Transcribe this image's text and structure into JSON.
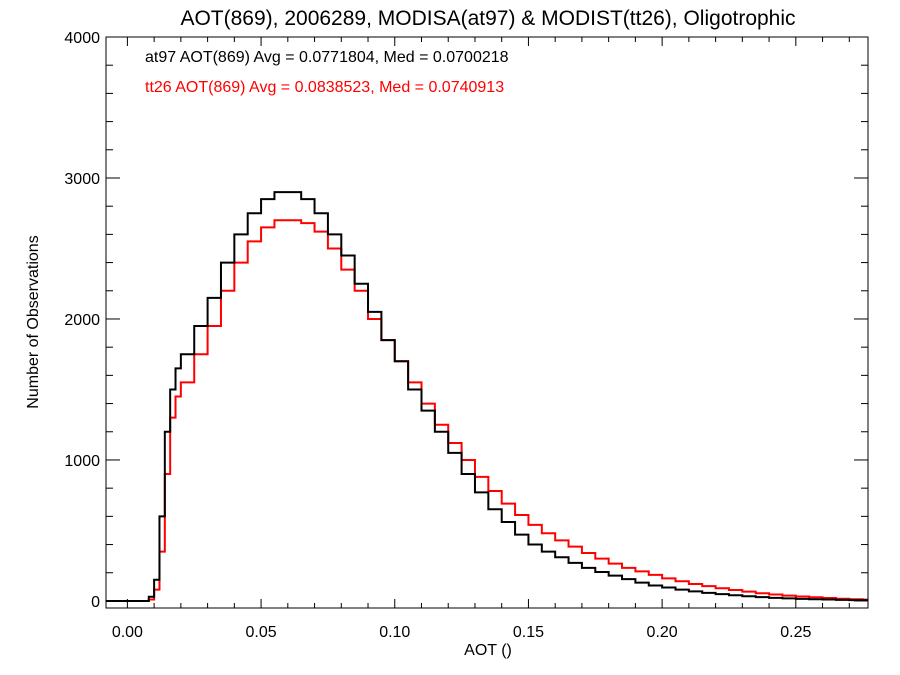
{
  "chart_data": {
    "type": "line",
    "title": "AOT(869), 2006289, MODISA(at97) & MODIST(tt26), Oligotrophic",
    "xlabel": "AOT ()",
    "ylabel": "Number of Observations",
    "xlim": [
      -0.008,
      0.277
    ],
    "ylim": [
      -50,
      4000
    ],
    "xticks": [
      0.0,
      0.05,
      0.1,
      0.15,
      0.2,
      0.25
    ],
    "xtick_labels": [
      "0.00",
      "0.05",
      "0.10",
      "0.15",
      "0.20",
      "0.25"
    ],
    "yticks": [
      0,
      1000,
      2000,
      3000,
      4000
    ],
    "ytick_labels": [
      "0",
      "1000",
      "2000",
      "3000",
      "4000"
    ],
    "grid": false,
    "annotations": [
      {
        "text": "at97 AOT(869) Avg = 0.0771804, Med = 0.0700218",
        "color": "#000000"
      },
      {
        "text": "tt26 AOT(869) Avg = 0.0838523, Med = 0.0740913",
        "color": "#ff0000"
      }
    ],
    "x": [
      0.005,
      0.008,
      0.01,
      0.012,
      0.014,
      0.016,
      0.018,
      0.02,
      0.025,
      0.03,
      0.035,
      0.04,
      0.045,
      0.05,
      0.055,
      0.06,
      0.065,
      0.07,
      0.075,
      0.08,
      0.085,
      0.09,
      0.095,
      0.1,
      0.105,
      0.11,
      0.115,
      0.12,
      0.125,
      0.13,
      0.135,
      0.14,
      0.145,
      0.15,
      0.155,
      0.16,
      0.165,
      0.17,
      0.175,
      0.18,
      0.185,
      0.19,
      0.195,
      0.2,
      0.205,
      0.21,
      0.215,
      0.22,
      0.225,
      0.23,
      0.235,
      0.24,
      0.245,
      0.25,
      0.255,
      0.26,
      0.265,
      0.27,
      0.275
    ],
    "series": [
      {
        "name": "at97",
        "color": "#000000",
        "values": [
          0,
          30,
          150,
          600,
          1200,
          1500,
          1650,
          1750,
          1950,
          2150,
          2400,
          2600,
          2750,
          2850,
          2900,
          2900,
          2850,
          2750,
          2600,
          2450,
          2250,
          2050,
          1850,
          1700,
          1500,
          1350,
          1200,
          1050,
          900,
          770,
          650,
          560,
          470,
          400,
          350,
          310,
          270,
          235,
          205,
          180,
          155,
          130,
          110,
          95,
          80,
          68,
          57,
          48,
          40,
          33,
          27,
          22,
          18,
          15,
          12,
          10,
          8,
          6,
          5
        ]
      },
      {
        "name": "tt26",
        "color": "#ff0000",
        "values": [
          0,
          10,
          80,
          350,
          900,
          1300,
          1450,
          1550,
          1750,
          1950,
          2200,
          2400,
          2550,
          2650,
          2700,
          2700,
          2680,
          2620,
          2500,
          2350,
          2200,
          2000,
          1850,
          1700,
          1550,
          1400,
          1250,
          1120,
          1000,
          880,
          780,
          690,
          610,
          540,
          480,
          430,
          385,
          340,
          300,
          265,
          235,
          210,
          185,
          160,
          140,
          120,
          105,
          90,
          78,
          66,
          55,
          46,
          38,
          32,
          26,
          21,
          16,
          12,
          9
        ]
      }
    ]
  }
}
